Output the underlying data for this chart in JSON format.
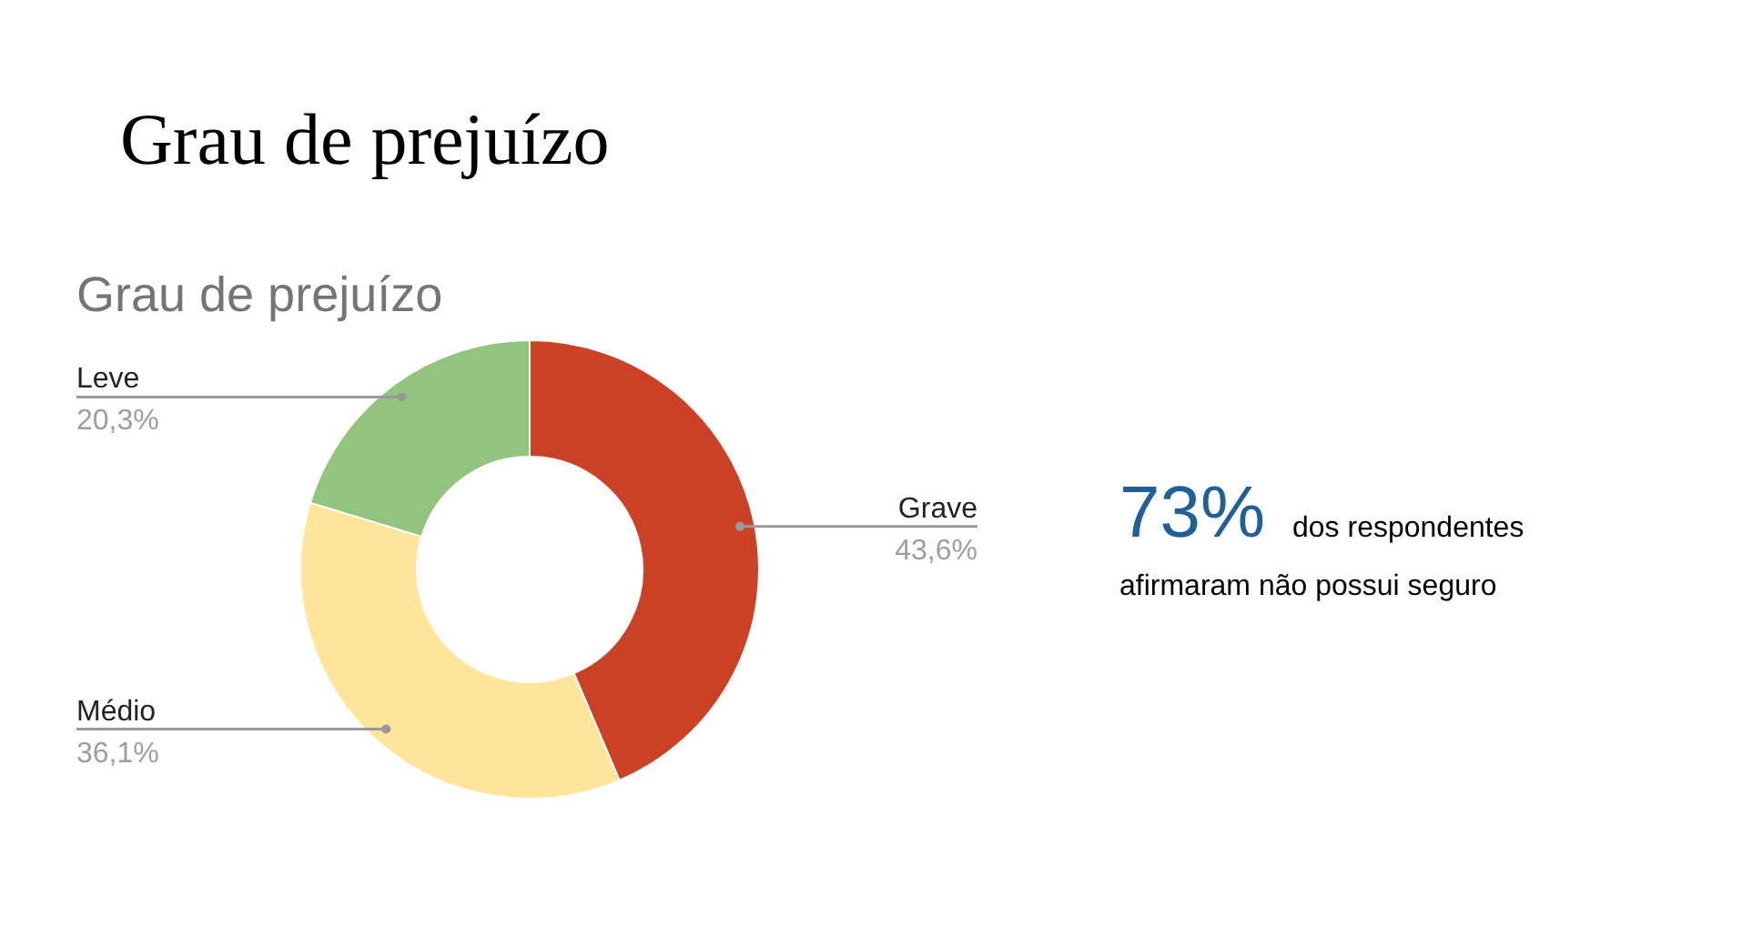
{
  "chart_data": {
    "type": "donut",
    "title": "Grau de prejuízo",
    "subtitle": "Grau de prejuízo",
    "categories": [
      "Grave",
      "Médio",
      "Leve"
    ],
    "values": [
      43.6,
      36.1,
      20.3
    ],
    "value_labels": [
      "43,6%",
      "36,1%",
      "20,3%"
    ],
    "colors": [
      "#cc4125",
      "#ffe599",
      "#93c47d"
    ],
    "legend": false,
    "annotations": [
      "73%",
      "dos respondentes",
      "afirmaram não possui seguro"
    ]
  }
}
